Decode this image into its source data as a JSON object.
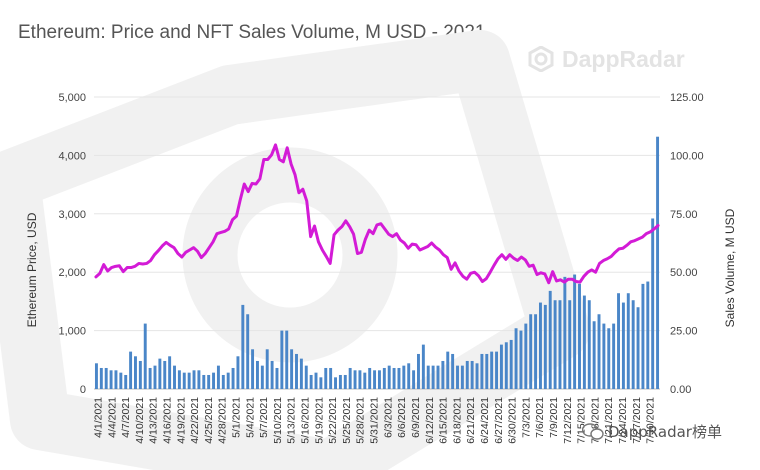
{
  "chart_data": {
    "type": "bar+line",
    "title": "Ethereum: Price and NFT Sales Volume, M USD - 2021",
    "ylabel_left": "Ethereum Price, USD",
    "ylabel_right": "Sales Volume, M USD",
    "ylim_left": [
      0,
      5000
    ],
    "ylim_right": [
      0,
      125
    ],
    "yticks_left": [
      "0",
      "1,000",
      "2,000",
      "3,000",
      "4,000",
      "5,000"
    ],
    "yticks_right": [
      "0.00",
      "25.00",
      "50.00",
      "75.00",
      "100.00",
      "125.00"
    ],
    "grid": true,
    "legend": {
      "position": "top",
      "items": [
        "Sales Volume, M USD",
        "Price"
      ]
    },
    "colors": {
      "bars": "#4a86c8",
      "line": "#d31bd6",
      "grid": "#e5e5e5",
      "text": "#555555"
    },
    "x_tick_labels": [
      "4/1/2021",
      "4/4/2021",
      "4/7/2021",
      "4/10/2021",
      "4/13/2021",
      "4/16/2021",
      "4/19/2021",
      "4/22/2021",
      "4/25/2021",
      "4/28/2021",
      "5/1/2021",
      "5/4/2021",
      "5/7/2021",
      "5/10/2021",
      "5/13/2021",
      "5/16/2021",
      "5/19/2021",
      "5/22/2021",
      "5/25/2021",
      "5/28/2021",
      "5/31/2021",
      "6/3/2021",
      "6/6/2021",
      "6/9/2021",
      "6/12/2021",
      "6/15/2021",
      "6/18/2021",
      "6/21/2021",
      "6/24/2021",
      "6/27/2021",
      "6/30/2021",
      "7/3/2021",
      "7/6/2021",
      "7/9/2021",
      "7/12/2021",
      "7/15/2021",
      "7/18/2021",
      "7/21/2021",
      "7/24/2021",
      "7/27/2021",
      "7/30/2021"
    ],
    "series": [
      {
        "name": "Sales Volume, M USD",
        "type": "bar",
        "axis": "right",
        "values": [
          11,
          9,
          9,
          8,
          8,
          7,
          6,
          16,
          14,
          12,
          28,
          9,
          10,
          13,
          12,
          14,
          10,
          8,
          7,
          7,
          8,
          8,
          6,
          6,
          7,
          10,
          6,
          7,
          9,
          14,
          36,
          32,
          17,
          12,
          10,
          17,
          12,
          9,
          25,
          25,
          17,
          15,
          13,
          10,
          6,
          7,
          5,
          9,
          9,
          5,
          6,
          6,
          9,
          8,
          8,
          7,
          9,
          8,
          8,
          9,
          10,
          9,
          9,
          10,
          11,
          8,
          15,
          19,
          10,
          10,
          10,
          12,
          16,
          15,
          10,
          10,
          12,
          12,
          11,
          15,
          15,
          16,
          16,
          19,
          20,
          21,
          26,
          25,
          28,
          32,
          32,
          37,
          36,
          42,
          38,
          38,
          48,
          38,
          49,
          45,
          40,
          38,
          29,
          32,
          28,
          26,
          28,
          41,
          37,
          41,
          38,
          35,
          45,
          46,
          73,
          108
        ]
      },
      {
        "name": "Price",
        "type": "line",
        "axis": "left",
        "values": [
          1920,
          1980,
          2130,
          2020,
          2080,
          2100,
          2110,
          2010,
          2080,
          2080,
          2100,
          2150,
          2140,
          2150,
          2200,
          2300,
          2370,
          2450,
          2510,
          2460,
          2420,
          2320,
          2260,
          2340,
          2380,
          2420,
          2360,
          2250,
          2320,
          2420,
          2520,
          2660,
          2680,
          2700,
          2740,
          2900,
          2960,
          3250,
          3510,
          3380,
          3520,
          3510,
          3600,
          3930,
          3930,
          4010,
          4180,
          3930,
          3890,
          4130,
          3850,
          3670,
          3360,
          3420,
          3220,
          2610,
          2790,
          2520,
          2380,
          2270,
          2150,
          2640,
          2720,
          2780,
          2880,
          2780,
          2650,
          2320,
          2340,
          2560,
          2720,
          2660,
          2810,
          2830,
          2740,
          2650,
          2610,
          2660,
          2550,
          2500,
          2410,
          2480,
          2470,
          2380,
          2410,
          2440,
          2500,
          2430,
          2380,
          2300,
          2250,
          2050,
          2160,
          2020,
          1930,
          1880,
          1980,
          2000,
          1940,
          1840,
          1890,
          2000,
          2120,
          2230,
          2300,
          2220,
          2300,
          2240,
          2200,
          2260,
          2210,
          2100,
          2120,
          1960,
          1990,
          1970,
          1820,
          2010,
          1850,
          1870,
          1830,
          1880,
          1880,
          1840,
          1830,
          1930,
          2000,
          2040,
          2000,
          2150,
          2200,
          2230,
          2270,
          2340,
          2400,
          2410,
          2460,
          2520,
          2540,
          2570,
          2600,
          2660,
          2690,
          2740,
          2800
        ]
      }
    ]
  },
  "branding": {
    "watermark": "DappRadar",
    "footer_watermark": "DappRadar榜单"
  }
}
